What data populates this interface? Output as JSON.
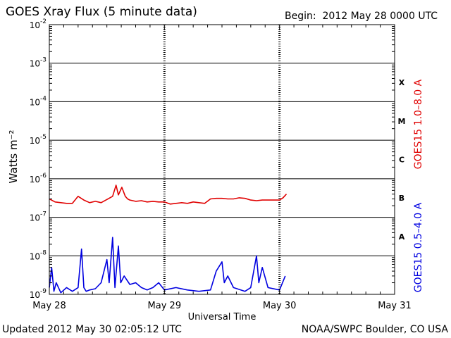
{
  "header": {
    "title": "GOES Xray Flux (5 minute data)",
    "begin_label": "Begin:",
    "begin_value": "2012 May 28 0000 UTC"
  },
  "footer": {
    "updated": "Updated 2012 May 30 02:05:12 UTC",
    "credit": "NOAA/SWPC Boulder, CO USA"
  },
  "chart_data": {
    "type": "line",
    "title": "GOES Xray Flux (5 minute data)",
    "xlabel": "Universal Time",
    "ylabel": "Watts m⁻²",
    "y_scale": "log",
    "ylim": [
      1e-09,
      0.01
    ],
    "xlim_days": [
      0,
      3
    ],
    "x_tick_labels": [
      "May 28",
      "May 29",
      "May 30",
      "May 31"
    ],
    "y_ticks": [
      {
        "mantissa": "10",
        "exp": "-9"
      },
      {
        "mantissa": "10",
        "exp": "-8"
      },
      {
        "mantissa": "10",
        "exp": "-7"
      },
      {
        "mantissa": "10",
        "exp": "-6"
      },
      {
        "mantissa": "10",
        "exp": "-5"
      },
      {
        "mantissa": "10",
        "exp": "-4"
      },
      {
        "mantissa": "10",
        "exp": "-3"
      },
      {
        "mantissa": "10",
        "exp": "-2"
      }
    ],
    "flare_classes": [
      {
        "label": "A",
        "band": [
          1e-08,
          1e-07
        ]
      },
      {
        "label": "B",
        "band": [
          1e-07,
          1e-06
        ]
      },
      {
        "label": "C",
        "band": [
          1e-06,
          1e-05
        ]
      },
      {
        "label": "M",
        "band": [
          1e-05,
          0.0001
        ]
      },
      {
        "label": "X",
        "band": [
          0.0001,
          0.001
        ]
      }
    ],
    "grid": "horizontal lines at each decade 1e-8 to 1e-3; dotted vertical lines at day boundaries",
    "series": [
      {
        "name": "GOES15 1.0–8.0 A",
        "color": "#e00000",
        "x": [
          0.0,
          0.05,
          0.1,
          0.15,
          0.2,
          0.25,
          0.3,
          0.35,
          0.4,
          0.45,
          0.5,
          0.55,
          0.58,
          0.6,
          0.63,
          0.66,
          0.68,
          0.7,
          0.75,
          0.8,
          0.85,
          0.9,
          0.95,
          1.0,
          1.05,
          1.1,
          1.15,
          1.2,
          1.25,
          1.3,
          1.35,
          1.4,
          1.45,
          1.5,
          1.55,
          1.6,
          1.65,
          1.7,
          1.75,
          1.8,
          1.85,
          1.9,
          1.95,
          2.0,
          2.03,
          2.06
        ],
        "y": [
          3e-07,
          2.5e-07,
          2.4e-07,
          2.3e-07,
          2.3e-07,
          3.5e-07,
          2.8e-07,
          2.4e-07,
          2.6e-07,
          2.4e-07,
          2.9e-07,
          3.5e-07,
          6.8e-07,
          3.8e-07,
          6e-07,
          3.5e-07,
          3e-07,
          2.8e-07,
          2.6e-07,
          2.7e-07,
          2.5e-07,
          2.6e-07,
          2.5e-07,
          2.5e-07,
          2.2e-07,
          2.3e-07,
          2.4e-07,
          2.3e-07,
          2.5e-07,
          2.4e-07,
          2.3e-07,
          3e-07,
          3.1e-07,
          3.1e-07,
          3e-07,
          3e-07,
          3.2e-07,
          3.1e-07,
          2.8e-07,
          2.7e-07,
          2.8e-07,
          2.8e-07,
          2.8e-07,
          2.8e-07,
          3.2e-07,
          4e-07
        ]
      },
      {
        "name": "GOES15 0.5–4.0 A",
        "color": "#0000e0",
        "x": [
          0.0,
          0.02,
          0.04,
          0.06,
          0.1,
          0.15,
          0.2,
          0.25,
          0.28,
          0.3,
          0.32,
          0.35,
          0.4,
          0.45,
          0.5,
          0.52,
          0.55,
          0.57,
          0.6,
          0.62,
          0.65,
          0.7,
          0.75,
          0.8,
          0.85,
          0.9,
          0.95,
          1.0,
          1.1,
          1.2,
          1.3,
          1.4,
          1.45,
          1.5,
          1.52,
          1.55,
          1.6,
          1.7,
          1.75,
          1.8,
          1.82,
          1.85,
          1.9,
          2.0,
          2.05
        ],
        "y": [
          1.5e-09,
          5e-09,
          1.2e-09,
          2e-09,
          1.1e-09,
          1.5e-09,
          1.2e-09,
          1.5e-09,
          1.5e-08,
          1.5e-09,
          1.2e-09,
          1.3e-09,
          1.4e-09,
          2e-09,
          8e-09,
          2e-09,
          3e-08,
          1.5e-09,
          1.8e-08,
          2e-09,
          3e-09,
          1.8e-09,
          2e-09,
          1.5e-09,
          1.3e-09,
          1.5e-09,
          2e-09,
          1.3e-09,
          1.5e-09,
          1.3e-09,
          1.2e-09,
          1.3e-09,
          4e-09,
          7e-09,
          2e-09,
          3e-09,
          1.5e-09,
          1.2e-09,
          1.5e-09,
          1e-08,
          2e-09,
          5e-09,
          1.5e-09,
          1.3e-09,
          3e-09
        ]
      }
    ]
  }
}
